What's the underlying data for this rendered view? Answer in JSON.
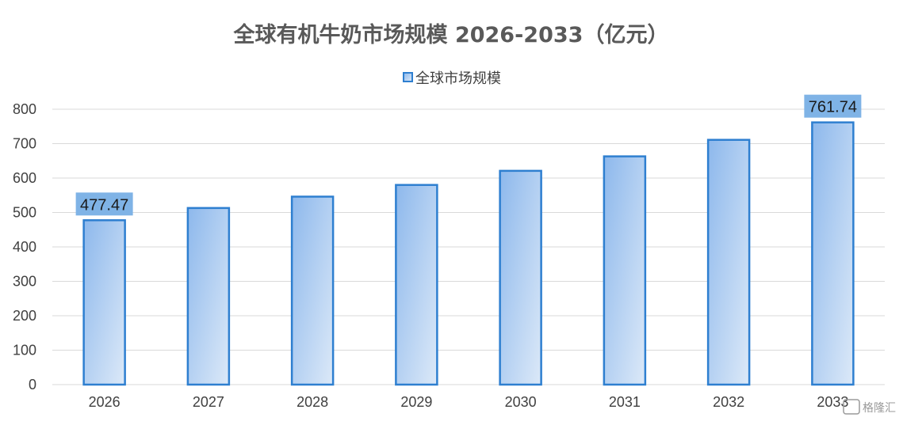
{
  "chart_data": {
    "type": "bar",
    "title": "全球有机牛奶市场规模 2026-2033（亿元）",
    "categories": [
      "2026",
      "2027",
      "2028",
      "2029",
      "2030",
      "2031",
      "2032",
      "2033"
    ],
    "series": [
      {
        "name": "全球市场规模",
        "values": [
          477.47,
          513,
          546,
          580,
          621,
          663,
          711,
          761.74
        ]
      }
    ],
    "data_labels": [
      {
        "index": 0,
        "text": "477.47"
      },
      {
        "index": 7,
        "text": "761.74"
      }
    ],
    "ylim": [
      0,
      800
    ],
    "yticks": [
      "0",
      "100",
      "200",
      "300",
      "400",
      "500",
      "600",
      "700",
      "800"
    ],
    "grid": true,
    "legend_position": "top-center"
  },
  "colors": {
    "bar_fill_start": "#8db8ec",
    "bar_fill_end": "#dce9f8",
    "bar_stroke": "#2e7fd0",
    "label_bg": "#7fb3e6",
    "grid": "#d9d9d9",
    "title": "#595959"
  },
  "watermark": {
    "text": "格隆汇"
  }
}
